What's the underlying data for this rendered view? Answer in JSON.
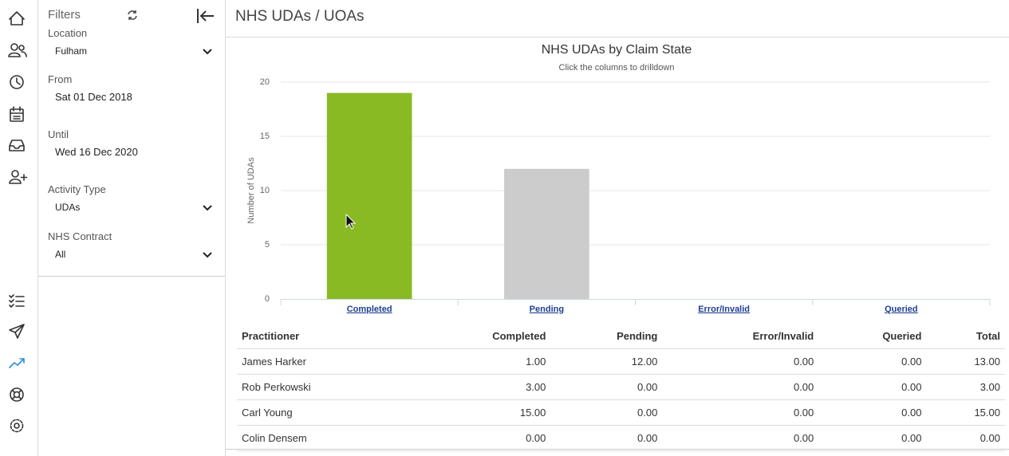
{
  "header": {
    "title": "NHS UDAs / UOAs"
  },
  "filters": {
    "title": "Filters",
    "fields": [
      {
        "label": "Location",
        "value": "Fulham",
        "kind": "select"
      },
      {
        "label": "From",
        "value": "Sat 01 Dec 2018",
        "kind": "date"
      },
      {
        "label": "Until",
        "value": "Wed 16 Dec 2020",
        "kind": "date"
      },
      {
        "label": "Activity Type",
        "value": "UDAs",
        "kind": "select"
      },
      {
        "label": "NHS Contract",
        "value": "All",
        "kind": "select"
      }
    ]
  },
  "chart_data": {
    "type": "bar",
    "title": "NHS UDAs by Claim State",
    "subtitle": "Click the columns to drilldown",
    "y_label": "Number of UDAs",
    "categories": [
      "Completed",
      "Pending",
      "Error/Invalid",
      "Queried"
    ],
    "values": [
      19,
      12,
      0,
      0
    ],
    "colors": [
      "#8aba23",
      "#cccccc",
      "#7cb5ec",
      "#434348"
    ],
    "ylim": [
      0,
      20
    ],
    "yticks": [
      0,
      5,
      10,
      15,
      20
    ],
    "grid": true
  },
  "table": {
    "headers": [
      "Practitioner",
      "Completed",
      "Pending",
      "Error/Invalid",
      "Queried",
      "Total"
    ],
    "rows": [
      [
        "James Harker",
        "1.00",
        "12.00",
        "0.00",
        "0.00",
        "13.00"
      ],
      [
        "Rob Perkowski",
        "3.00",
        "0.00",
        "0.00",
        "0.00",
        "3.00"
      ],
      [
        "Carl Young",
        "15.00",
        "0.00",
        "0.00",
        "0.00",
        "15.00"
      ],
      [
        "Colin Densem",
        "0.00",
        "0.00",
        "0.00",
        "0.00",
        "0.00"
      ]
    ]
  }
}
